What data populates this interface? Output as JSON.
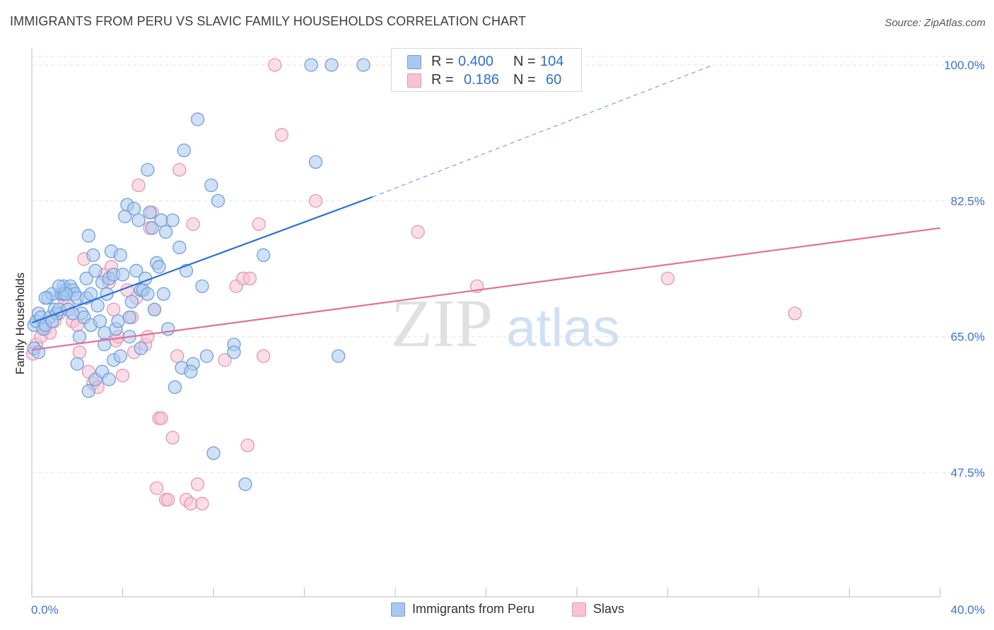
{
  "title": "IMMIGRANTS FROM PERU VS SLAVIC FAMILY HOUSEHOLDS CORRELATION CHART",
  "source": "Source: ZipAtlas.com",
  "watermark": {
    "zip": "ZIP",
    "atlas": "atlas"
  },
  "legend_top": {
    "peru": {
      "r_label": "R =",
      "r_value": "0.400",
      "n_label": "N =",
      "n_value": "104"
    },
    "slavs": {
      "r_label": "R =",
      "r_value": "0.186",
      "n_label": "N =",
      "n_value": "60"
    }
  },
  "legend_bottom": {
    "peru": "Immigrants from Peru",
    "slavs": "Slavs"
  },
  "colors": {
    "peru_fill": "#a9c8ef",
    "peru_stroke": "#6f9fdc",
    "peru_line": "#2d72d2",
    "slavs_fill": "#f6c3d3",
    "slavs_stroke": "#e795b0",
    "slavs_line": "#e0719a",
    "tick_label": "#3a74cc",
    "grid": "#e3e3e3"
  },
  "chart_data": {
    "type": "scatter",
    "title": "IMMIGRANTS FROM PERU VS SLAVIC FAMILY HOUSEHOLDS CORRELATION CHART",
    "xlabel": "",
    "ylabel": "Family Households",
    "xlim": [
      0,
      40
    ],
    "ylim": [
      31.5,
      102
    ],
    "x_tick_labels": [
      "0.0%",
      "40.0%"
    ],
    "y_ticks": [
      47.5,
      65.0,
      82.5,
      100.0
    ],
    "y_tick_labels": [
      "47.5%",
      "65.0%",
      "82.5%",
      "100.0%"
    ],
    "grid": true,
    "series": [
      {
        "name": "Immigrants from Peru",
        "color": "#6f9fdc",
        "points": [
          [
            0.1,
            63.5
          ],
          [
            0.1,
            66.5
          ],
          [
            0.2,
            67.0
          ],
          [
            0.3,
            68.0
          ],
          [
            0.3,
            63.0
          ],
          [
            0.4,
            67.5
          ],
          [
            0.5,
            66.0
          ],
          [
            0.6,
            66.5
          ],
          [
            0.7,
            70.0
          ],
          [
            0.8,
            67.5
          ],
          [
            0.9,
            70.5
          ],
          [
            1.0,
            68.5
          ],
          [
            1.1,
            68.0
          ],
          [
            1.2,
            68.5
          ],
          [
            1.3,
            70.5
          ],
          [
            1.4,
            71.5
          ],
          [
            1.4,
            70.5
          ],
          [
            1.5,
            71.0
          ],
          [
            1.6,
            68.5
          ],
          [
            1.7,
            71.5
          ],
          [
            1.8,
            71.0
          ],
          [
            1.9,
            70.5
          ],
          [
            2.0,
            70.0
          ],
          [
            2.1,
            65.0
          ],
          [
            2.2,
            68.0
          ],
          [
            2.3,
            67.5
          ],
          [
            2.4,
            70.0
          ],
          [
            2.4,
            72.5
          ],
          [
            2.5,
            78.0
          ],
          [
            2.6,
            66.5
          ],
          [
            2.7,
            75.5
          ],
          [
            2.8,
            73.5
          ],
          [
            2.9,
            69.0
          ],
          [
            3.0,
            67.0
          ],
          [
            3.1,
            72.0
          ],
          [
            3.2,
            64.0
          ],
          [
            3.3,
            70.5
          ],
          [
            3.4,
            72.5
          ],
          [
            3.5,
            76.0
          ],
          [
            3.6,
            73.0
          ],
          [
            3.7,
            66.0
          ],
          [
            3.8,
            67.0
          ],
          [
            3.9,
            75.5
          ],
          [
            4.0,
            73.0
          ],
          [
            4.1,
            80.5
          ],
          [
            4.2,
            82.0
          ],
          [
            4.3,
            65.0
          ],
          [
            4.4,
            69.5
          ],
          [
            4.5,
            81.5
          ],
          [
            4.6,
            73.5
          ],
          [
            4.7,
            80.0
          ],
          [
            4.8,
            71.0
          ],
          [
            4.9,
            71.0
          ],
          [
            5.0,
            72.5
          ],
          [
            5.1,
            70.5
          ],
          [
            5.1,
            86.5
          ],
          [
            5.2,
            81.0
          ],
          [
            5.3,
            79.0
          ],
          [
            5.4,
            68.5
          ],
          [
            5.5,
            74.5
          ],
          [
            5.6,
            74.0
          ],
          [
            5.7,
            80.0
          ],
          [
            5.8,
            70.5
          ],
          [
            5.9,
            78.5
          ],
          [
            6.0,
            66.0
          ],
          [
            6.2,
            80.0
          ],
          [
            6.5,
            76.5
          ],
          [
            6.7,
            89.0
          ],
          [
            6.8,
            73.5
          ],
          [
            7.1,
            61.5
          ],
          [
            7.3,
            93.0
          ],
          [
            7.5,
            71.5
          ],
          [
            7.7,
            62.5
          ],
          [
            7.9,
            84.5
          ],
          [
            8.2,
            82.5
          ],
          [
            8.0,
            50.0
          ],
          [
            8.9,
            64.0
          ],
          [
            8.9,
            63.0
          ],
          [
            9.4,
            46.0
          ],
          [
            10.2,
            75.5
          ],
          [
            12.3,
            100.0
          ],
          [
            12.5,
            87.5
          ],
          [
            13.2,
            100.0
          ],
          [
            13.5,
            62.5
          ],
          [
            14.6,
            100.0
          ],
          [
            1.5,
            70.5
          ],
          [
            2.0,
            61.5
          ],
          [
            2.5,
            58.0
          ],
          [
            2.8,
            59.5
          ],
          [
            3.1,
            60.5
          ],
          [
            3.2,
            65.5
          ],
          [
            3.4,
            59.5
          ],
          [
            3.6,
            62.0
          ],
          [
            3.9,
            62.5
          ],
          [
            4.3,
            67.5
          ],
          [
            6.3,
            58.5
          ],
          [
            6.6,
            61.0
          ],
          [
            7.0,
            60.5
          ],
          [
            4.8,
            63.5
          ],
          [
            1.8,
            68.0
          ],
          [
            0.9,
            67.0
          ],
          [
            0.6,
            70.0
          ],
          [
            1.2,
            71.5
          ],
          [
            2.6,
            70.5
          ]
        ]
      },
      {
        "name": "Slavs",
        "color": "#e795b0",
        "points": [
          [
            0.05,
            62.8
          ],
          [
            0.2,
            64.0
          ],
          [
            0.4,
            65.0
          ],
          [
            0.6,
            66.0
          ],
          [
            0.8,
            65.5
          ],
          [
            1.0,
            67.0
          ],
          [
            1.2,
            68.0
          ],
          [
            1.4,
            70.0
          ],
          [
            1.6,
            69.0
          ],
          [
            1.8,
            67.0
          ],
          [
            2.0,
            66.5
          ],
          [
            2.1,
            63.0
          ],
          [
            2.3,
            75.0
          ],
          [
            2.5,
            60.5
          ],
          [
            2.7,
            59.0
          ],
          [
            2.9,
            58.5
          ],
          [
            3.2,
            73.0
          ],
          [
            3.4,
            72.0
          ],
          [
            3.5,
            74.0
          ],
          [
            3.6,
            68.5
          ],
          [
            3.7,
            64.5
          ],
          [
            3.8,
            65.0
          ],
          [
            4.0,
            60.0
          ],
          [
            4.2,
            71.0
          ],
          [
            4.4,
            67.5
          ],
          [
            4.5,
            63.0
          ],
          [
            4.6,
            70.0
          ],
          [
            4.7,
            84.5
          ],
          [
            5.0,
            64.0
          ],
          [
            5.1,
            65.0
          ],
          [
            5.2,
            79.0
          ],
          [
            5.3,
            81.0
          ],
          [
            5.4,
            68.5
          ],
          [
            5.5,
            45.5
          ],
          [
            5.6,
            54.5
          ],
          [
            5.7,
            54.5
          ],
          [
            5.9,
            44.0
          ],
          [
            6.0,
            44.0
          ],
          [
            6.2,
            52.0
          ],
          [
            6.5,
            86.5
          ],
          [
            6.8,
            44.0
          ],
          [
            7.0,
            43.5
          ],
          [
            7.1,
            79.5
          ],
          [
            7.3,
            46.0
          ],
          [
            7.5,
            43.5
          ],
          [
            8.5,
            62.0
          ],
          [
            9.0,
            71.5
          ],
          [
            9.3,
            72.5
          ],
          [
            9.6,
            72.5
          ],
          [
            10.0,
            79.5
          ],
          [
            10.2,
            62.5
          ],
          [
            10.7,
            100.0
          ],
          [
            11.0,
            91.0
          ],
          [
            12.5,
            82.5
          ],
          [
            17.0,
            78.5
          ],
          [
            19.6,
            71.5
          ],
          [
            28.0,
            72.5
          ],
          [
            33.6,
            68.0
          ],
          [
            6.4,
            62.5
          ],
          [
            9.5,
            51.0
          ]
        ]
      }
    ],
    "trendlines": [
      {
        "series": "Immigrants from Peru",
        "x_solid": [
          0,
          15.0
        ],
        "y_solid": [
          66.8,
          83.0
        ],
        "x_dashed": [
          15.0,
          30.0
        ],
        "y_dashed": [
          83.0,
          100.0
        ]
      },
      {
        "series": "Slavs",
        "x": [
          0,
          40.0
        ],
        "y": [
          63.3,
          79.0
        ]
      }
    ]
  }
}
